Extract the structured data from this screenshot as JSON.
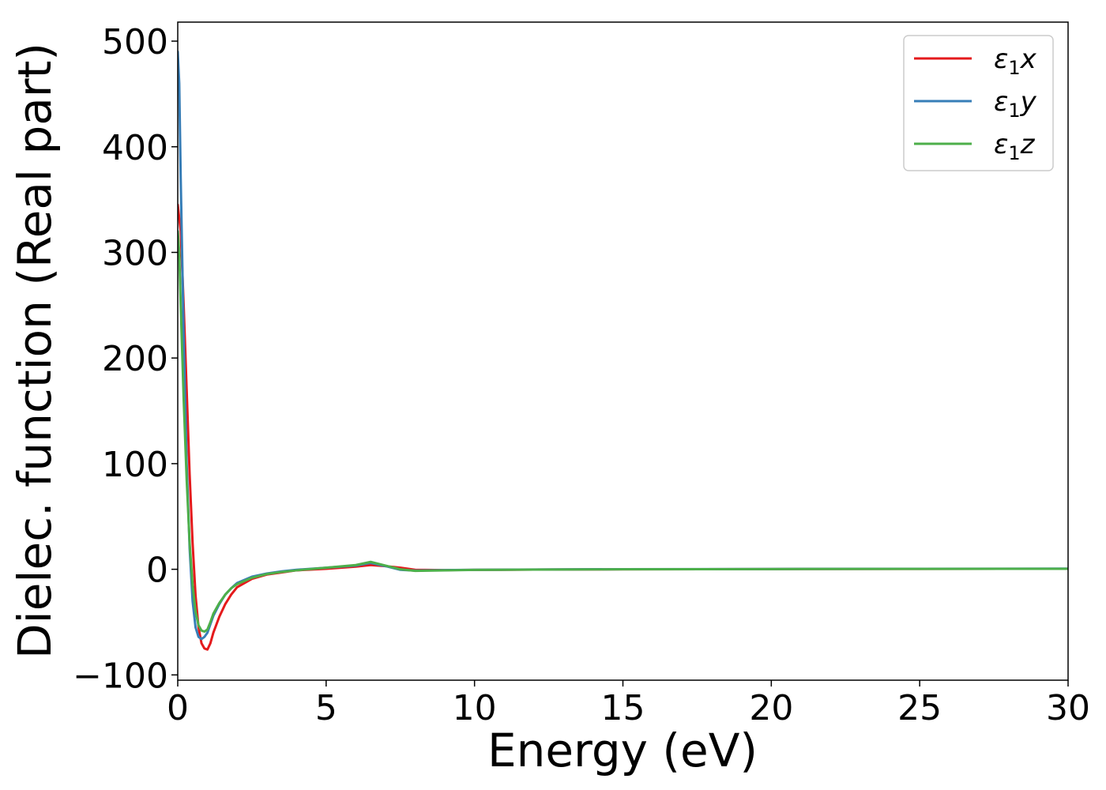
{
  "chart_data": {
    "type": "line",
    "title": "",
    "xlabel": "Energy (eV)",
    "ylabel": "Dielec. function (Real part)",
    "xlim": [
      0,
      30
    ],
    "ylim": [
      -105,
      518
    ],
    "xticks": [
      0,
      5,
      10,
      15,
      20,
      25,
      30
    ],
    "yticks": [
      -100,
      0,
      100,
      200,
      300,
      400,
      500
    ],
    "xtick_labels": [
      "0",
      "5",
      "10",
      "15",
      "20",
      "25",
      "30"
    ],
    "ytick_labels": [
      "−100",
      "0",
      "100",
      "200",
      "300",
      "400",
      "500"
    ],
    "grid": false,
    "legend_position": "top-right",
    "series": [
      {
        "name": "ε1x",
        "label_main": "ε",
        "label_sub": "1",
        "label_var": "x",
        "color": "#e41a1c",
        "x": [
          0.0,
          0.1,
          0.2,
          0.3,
          0.4,
          0.5,
          0.6,
          0.7,
          0.8,
          0.9,
          1.0,
          1.1,
          1.2,
          1.4,
          1.6,
          1.8,
          2.0,
          2.5,
          3.0,
          3.5,
          4.0,
          5.0,
          6.0,
          6.5,
          7.0,
          7.5,
          8.0,
          9.0,
          10.0,
          12.0,
          15.0,
          20.0,
          25.0,
          30.0
        ],
        "y": [
          345,
          320,
          250,
          170,
          90,
          25,
          -25,
          -55,
          -70,
          -75,
          -76,
          -70,
          -60,
          -45,
          -33,
          -24,
          -17,
          -9,
          -5,
          -3,
          -1,
          0.5,
          2.5,
          4,
          3,
          1.5,
          -0.5,
          -0.8,
          -0.6,
          -0.3,
          0,
          0.2,
          0.4,
          0.5
        ]
      },
      {
        "name": "ε1y",
        "label_main": "ε",
        "label_sub": "1",
        "label_var": "y",
        "color": "#377eb8",
        "x": [
          0.0,
          0.05,
          0.1,
          0.2,
          0.3,
          0.4,
          0.5,
          0.6,
          0.7,
          0.8,
          0.9,
          1.0,
          1.1,
          1.2,
          1.4,
          1.6,
          1.8,
          2.0,
          2.5,
          3.0,
          3.5,
          4.0,
          5.0,
          6.0,
          6.5,
          7.0,
          7.5,
          8.0,
          9.0,
          10.0,
          12.0,
          15.0,
          20.0,
          25.0,
          30.0
        ],
        "y": [
          490,
          460,
          370,
          220,
          100,
          20,
          -30,
          -55,
          -64,
          -66,
          -64,
          -60,
          -52,
          -44,
          -33,
          -24,
          -18,
          -13,
          -7,
          -4,
          -2,
          -0.5,
          1.5,
          3.5,
          6,
          3,
          -0.5,
          -1.2,
          -0.8,
          -0.5,
          -0.2,
          0.1,
          0.3,
          0.5,
          0.6
        ]
      },
      {
        "name": "ε1z",
        "label_main": "ε",
        "label_sub": "1",
        "label_var": "z",
        "color": "#4daf4a",
        "x": [
          0.0,
          0.05,
          0.1,
          0.2,
          0.3,
          0.4,
          0.5,
          0.6,
          0.7,
          0.8,
          0.9,
          1.0,
          1.1,
          1.2,
          1.4,
          1.6,
          1.8,
          2.0,
          2.5,
          3.0,
          3.5,
          4.0,
          5.0,
          6.0,
          6.5,
          7.0,
          7.5,
          8.0,
          9.0,
          10.0,
          12.0,
          15.0,
          20.0,
          25.0,
          30.0
        ],
        "y": [
          320,
          300,
          250,
          160,
          85,
          25,
          -15,
          -40,
          -53,
          -58,
          -59,
          -57,
          -50,
          -42,
          -32,
          -24,
          -18,
          -14,
          -8,
          -4.5,
          -2.5,
          -1,
          1.5,
          4,
          7,
          3.5,
          0,
          -1.5,
          -1,
          -0.6,
          -0.3,
          0,
          0.2,
          0.4,
          0.5
        ]
      }
    ]
  }
}
